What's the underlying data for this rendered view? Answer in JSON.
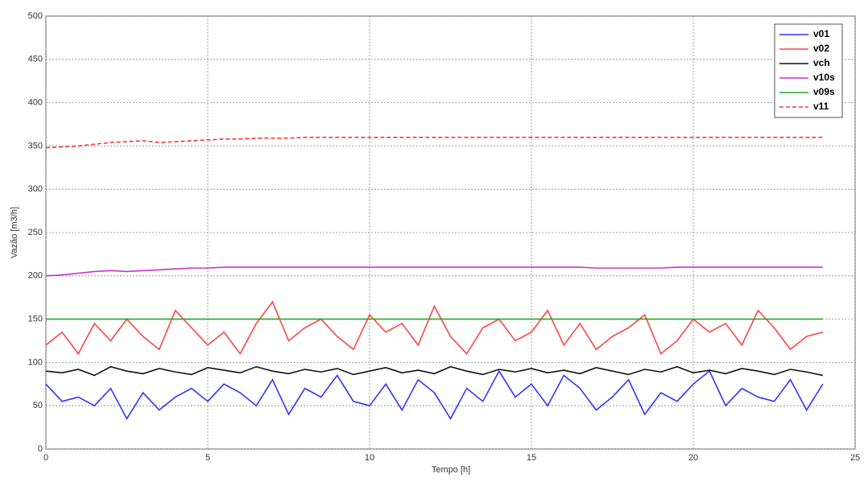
{
  "chart_data": {
    "type": "line",
    "xlabel": "Tempo [h]",
    "ylabel": "Vazão [m3/h]",
    "x": [
      0,
      0.5,
      1,
      1.5,
      2,
      2.5,
      3,
      3.5,
      4,
      4.5,
      5,
      5.5,
      6,
      6.5,
      7,
      7.5,
      8,
      8.5,
      9,
      9.5,
      10,
      10.5,
      11,
      11.5,
      12,
      12.5,
      13,
      13.5,
      14,
      14.5,
      15,
      15.5,
      16,
      16.5,
      17,
      17.5,
      18,
      18.5,
      19,
      19.5,
      20,
      20.5,
      21,
      21.5,
      22,
      22.5,
      23,
      23.5,
      24
    ],
    "series": [
      {
        "name": "v01",
        "color": "#3333ff",
        "dash": false,
        "values": [
          75,
          55,
          60,
          50,
          70,
          35,
          65,
          45,
          60,
          70,
          55,
          75,
          65,
          50,
          80,
          40,
          70,
          60,
          85,
          55,
          50,
          75,
          45,
          80,
          65,
          35,
          70,
          55,
          90,
          60,
          75,
          50,
          85,
          70,
          45,
          60,
          80,
          40,
          65,
          55,
          75,
          90,
          50,
          70,
          60,
          55,
          80,
          45,
          75
        ]
      },
      {
        "name": "v02",
        "color": "#ff4444",
        "dash": false,
        "values": [
          120,
          135,
          110,
          145,
          125,
          150,
          130,
          115,
          160,
          140,
          120,
          135,
          110,
          145,
          170,
          125,
          140,
          150,
          130,
          115,
          155,
          135,
          145,
          120,
          165,
          130,
          110,
          140,
          150,
          125,
          135,
          160,
          120,
          145,
          115,
          130,
          140,
          155,
          110,
          125,
          150,
          135,
          145,
          120,
          160,
          140,
          115,
          130,
          135
        ]
      },
      {
        "name": "vch",
        "color": "#111111",
        "dash": false,
        "values": [
          90,
          88,
          92,
          85,
          95,
          90,
          87,
          93,
          89,
          86,
          94,
          91,
          88,
          95,
          90,
          87,
          92,
          89,
          93,
          86,
          90,
          94,
          88,
          91,
          87,
          95,
          90,
          86,
          92,
          89,
          93,
          88,
          91,
          87,
          94,
          90,
          86,
          92,
          89,
          95,
          88,
          91,
          87,
          93,
          90,
          86,
          92,
          89,
          85
        ]
      },
      {
        "name": "v10s",
        "color": "#cc33cc",
        "dash": false,
        "values": [
          200,
          201,
          203,
          205,
          206,
          205,
          206,
          207,
          208,
          209,
          209,
          210,
          210,
          210,
          210,
          210,
          210,
          210,
          210,
          210,
          210,
          210,
          210,
          210,
          210,
          210,
          210,
          210,
          210,
          210,
          210,
          210,
          210,
          210,
          209,
          209,
          209,
          209,
          209,
          210,
          210,
          210,
          210,
          210,
          210,
          210,
          210,
          210,
          210
        ]
      },
      {
        "name": "v09s",
        "color": "#22aa22",
        "dash": false,
        "values": [
          150,
          150,
          150,
          150,
          150,
          150,
          150,
          150,
          150,
          150,
          150,
          150,
          150,
          150,
          150,
          150,
          150,
          150,
          150,
          150,
          150,
          150,
          150,
          150,
          150,
          150,
          150,
          150,
          150,
          150,
          150,
          150,
          150,
          150,
          150,
          150,
          150,
          150,
          150,
          150,
          150,
          150,
          150,
          150,
          150,
          150,
          150,
          150,
          150
        ]
      },
      {
        "name": "v11",
        "color": "#ff3333",
        "dash": true,
        "values": [
          348,
          349,
          350,
          352,
          354,
          355,
          356,
          354,
          355,
          356,
          357,
          358,
          358,
          359,
          359,
          359,
          360,
          360,
          360,
          360,
          360,
          360,
          360,
          360,
          360,
          360,
          360,
          360,
          360,
          360,
          360,
          360,
          360,
          360,
          360,
          360,
          360,
          360,
          360,
          360,
          360,
          360,
          360,
          360,
          360,
          360,
          360,
          360,
          360
        ]
      }
    ],
    "xlim": [
      0,
      25
    ],
    "xticks": [
      0,
      5,
      10,
      15,
      20,
      25
    ],
    "ylim": [
      0,
      500
    ],
    "yticks": [
      0,
      50,
      100,
      150,
      200,
      250,
      300,
      350,
      400,
      450,
      500
    ],
    "grid": true,
    "legend": "upper right"
  }
}
